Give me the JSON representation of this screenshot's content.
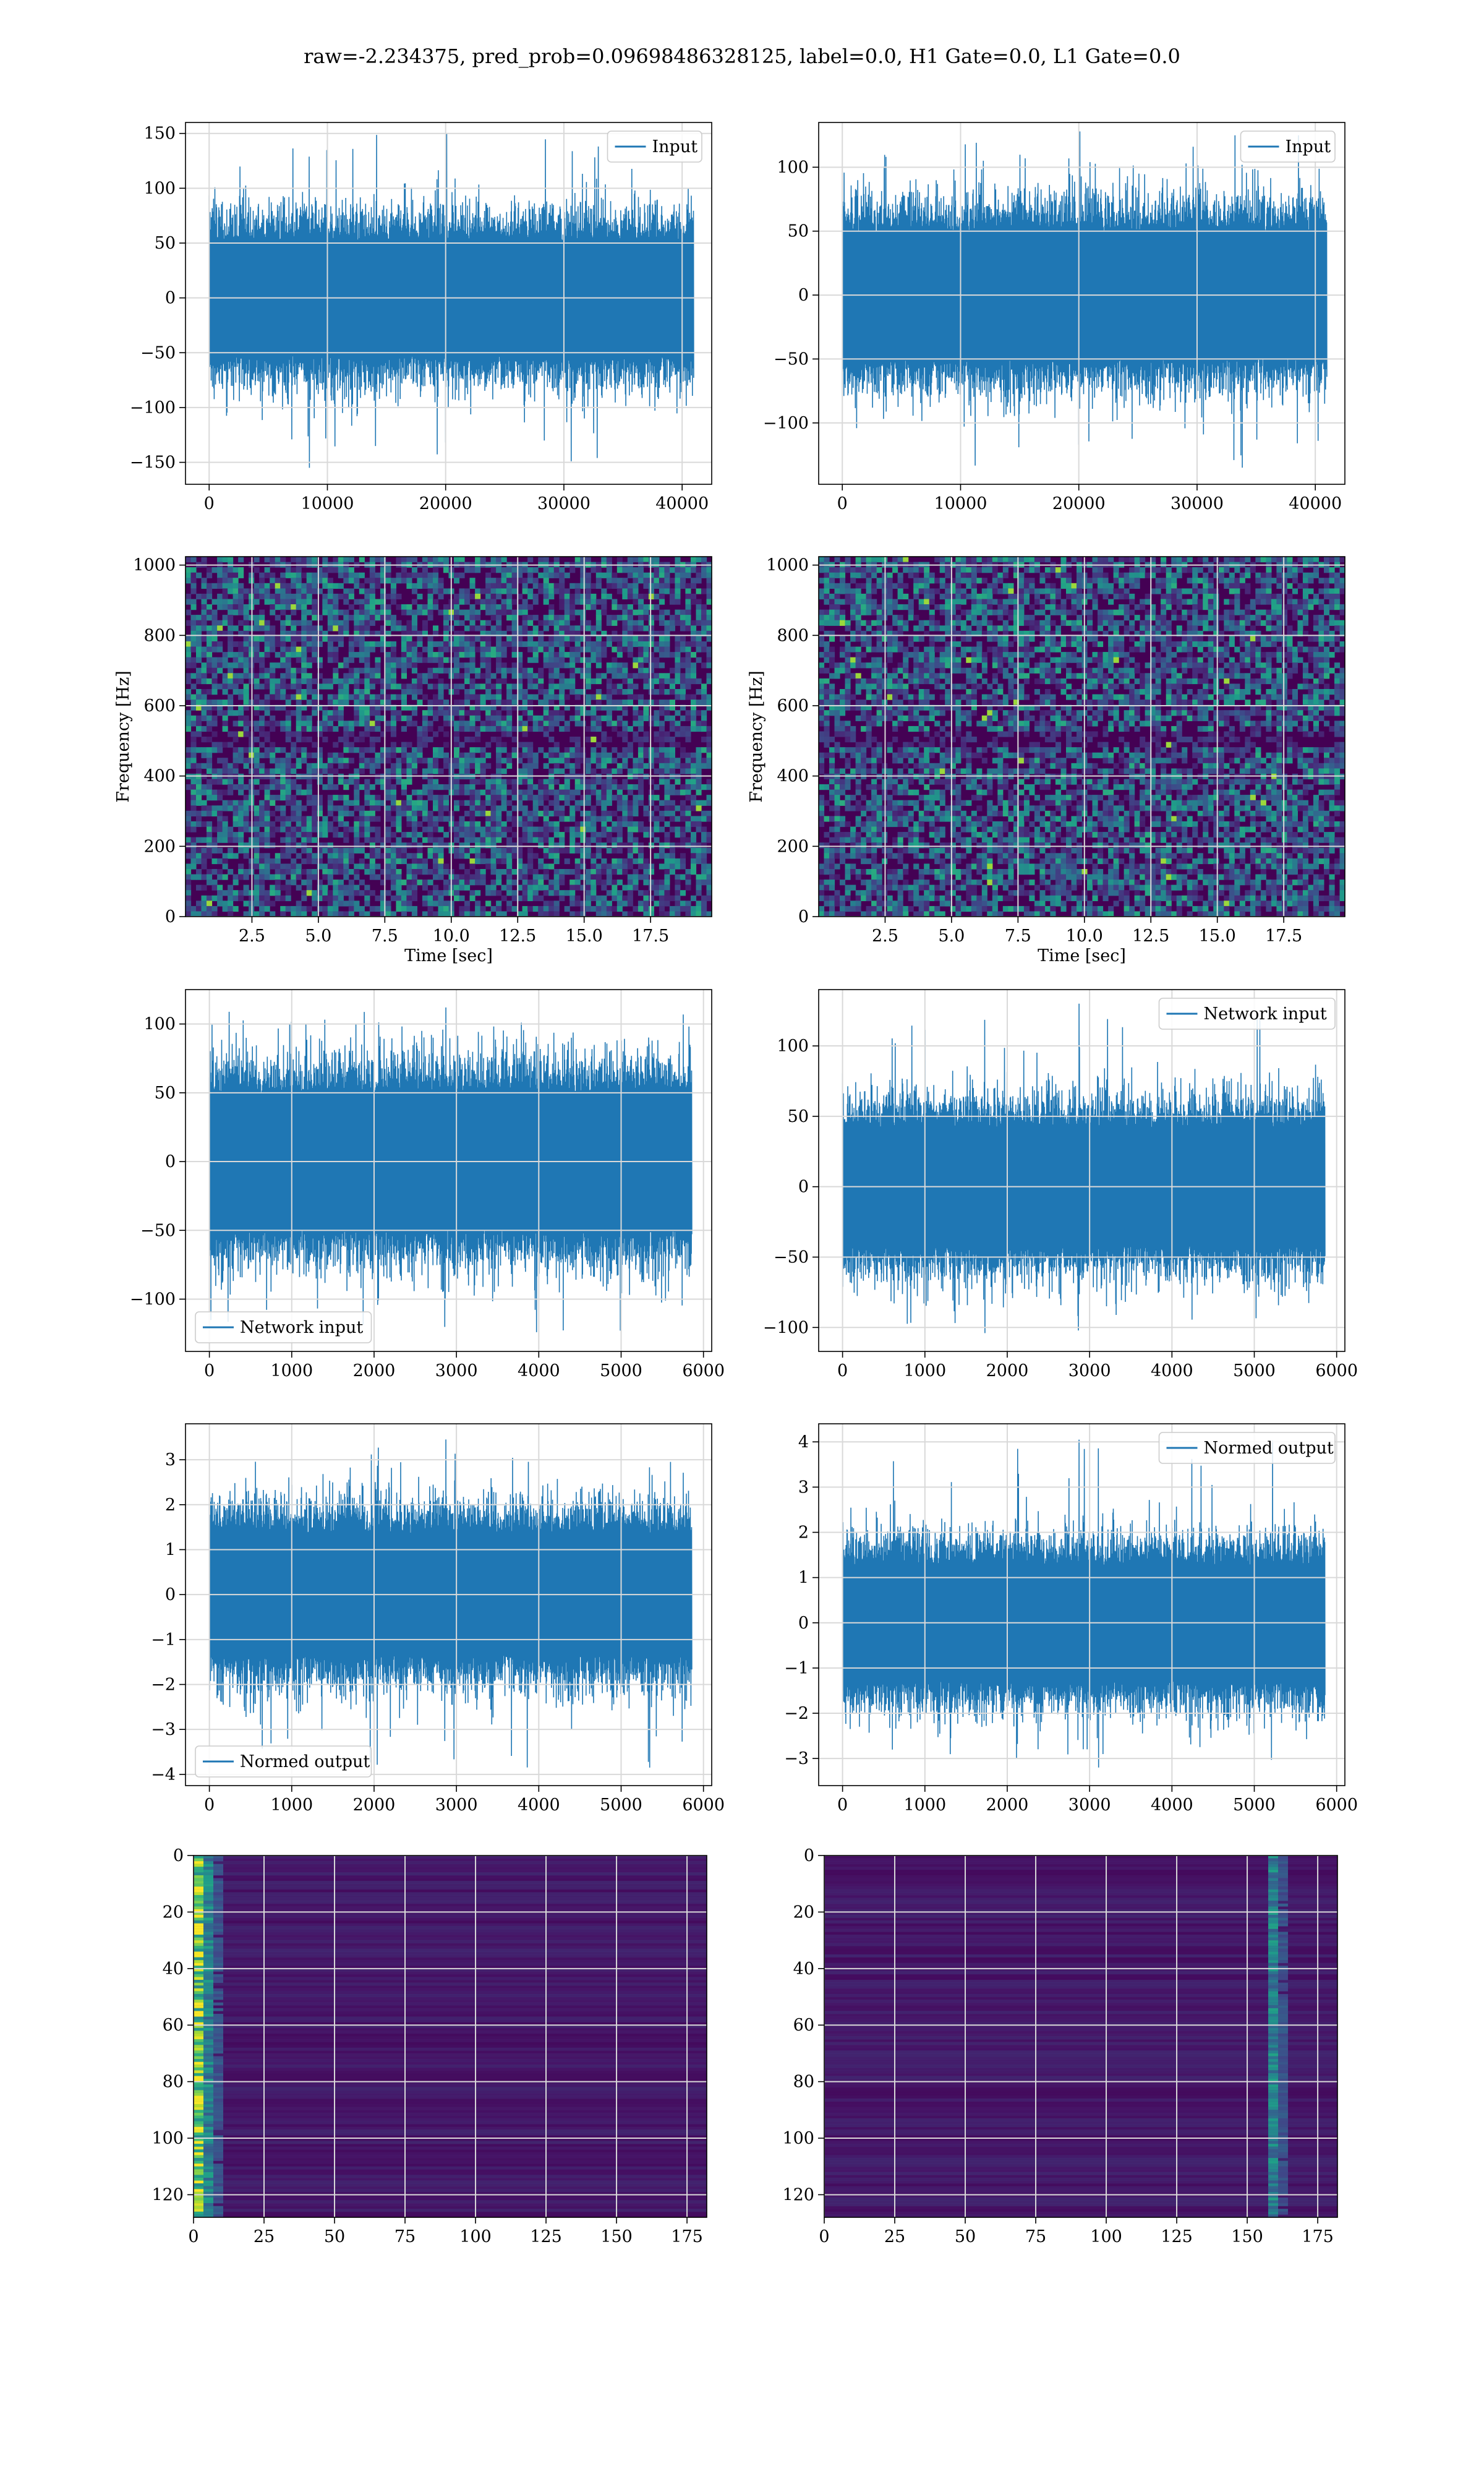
{
  "suptitle": "raw=-2.234375, pred_prob=0.09698486328125, label=0.0, H1 Gate=0.0, L1 Gate=0.0",
  "colors": {
    "line": "#1f77b4",
    "grid": "#d9d9d9",
    "viridis_low": "#440154",
    "viridis_mid": "#21918c",
    "viridis_high": "#fde725"
  },
  "chart_data": [
    {
      "id": "input-h1",
      "type": "line",
      "xlim": [
        -2000,
        42500
      ],
      "ylim": [
        -170,
        160
      ],
      "xticks": [
        "0",
        "10000",
        "20000",
        "30000",
        "40000"
      ],
      "xtick_values": [
        0,
        10000,
        20000,
        30000,
        40000
      ],
      "yticks": [
        "150",
        "100",
        "50",
        "0",
        "−50",
        "−100",
        "−150"
      ],
      "ytick_values": [
        150,
        100,
        50,
        0,
        -50,
        -100,
        -150
      ],
      "x_range": [
        0,
        40960
      ],
      "amplitude": 35,
      "peak_max": 150,
      "peak_min": -155,
      "series": [
        {
          "name": "Input"
        }
      ],
      "legend_loc": "upper right",
      "grid": true
    },
    {
      "id": "input-l1",
      "type": "line",
      "xlim": [
        -2000,
        42500
      ],
      "ylim": [
        -148,
        135
      ],
      "xticks": [
        "0",
        "10000",
        "20000",
        "30000",
        "40000"
      ],
      "xtick_values": [
        0,
        10000,
        20000,
        30000,
        40000
      ],
      "yticks": [
        "100",
        "50",
        "0",
        "−50",
        "−100"
      ],
      "ytick_values": [
        100,
        50,
        0,
        -50,
        -100
      ],
      "x_range": [
        0,
        40960
      ],
      "amplitude": 33,
      "peak_max": 128,
      "peak_min": -135,
      "series": [
        {
          "name": "Input"
        }
      ],
      "legend_loc": "upper right",
      "grid": true
    },
    {
      "id": "spectrogram-h1",
      "type": "heatmap",
      "xlim": [
        0,
        19.8
      ],
      "ylim": [
        0,
        1024
      ],
      "xticks": [
        "2.5",
        "5.0",
        "7.5",
        "10.0",
        "12.5",
        "15.0",
        "17.5"
      ],
      "xtick_values": [
        2.5,
        5,
        7.5,
        10,
        12.5,
        15,
        17.5
      ],
      "yticks": [
        "1000",
        "800",
        "600",
        "400",
        "200",
        "0"
      ],
      "ytick_values": [
        1000,
        800,
        600,
        400,
        200,
        0
      ],
      "xlabel": "Time [sec]",
      "ylabel": "Frequency [Hz]",
      "grid": true
    },
    {
      "id": "spectrogram-l1",
      "type": "heatmap",
      "xlim": [
        0,
        19.8
      ],
      "ylim": [
        0,
        1024
      ],
      "xticks": [
        "2.5",
        "5.0",
        "7.5",
        "10.0",
        "12.5",
        "15.0",
        "17.5"
      ],
      "xtick_values": [
        2.5,
        5,
        7.5,
        10,
        12.5,
        15,
        17.5
      ],
      "yticks": [
        "1000",
        "800",
        "600",
        "400",
        "200",
        "0"
      ],
      "ytick_values": [
        1000,
        800,
        600,
        400,
        200,
        0
      ],
      "xlabel": "Time [sec]",
      "ylabel": "Frequency [Hz]",
      "grid": true
    },
    {
      "id": "network-input-h1",
      "type": "line",
      "xlim": [
        -290,
        6100
      ],
      "ylim": [
        -138,
        125
      ],
      "xticks": [
        "0",
        "1000",
        "2000",
        "3000",
        "4000",
        "5000",
        "6000"
      ],
      "xtick_values": [
        0,
        1000,
        2000,
        3000,
        4000,
        5000,
        6000
      ],
      "yticks": [
        "100",
        "50",
        "0",
        "−50",
        "−100"
      ],
      "ytick_values": [
        100,
        50,
        0,
        -50,
        -100
      ],
      "x_range": [
        0,
        5856
      ],
      "amplitude": 33,
      "peak_max": 112,
      "peak_min": -124,
      "series": [
        {
          "name": "Network input"
        }
      ],
      "legend_loc": "lower left",
      "grid": true
    },
    {
      "id": "network-input-l1",
      "type": "line",
      "xlim": [
        -290,
        6100
      ],
      "ylim": [
        -117,
        140
      ],
      "xticks": [
        "0",
        "1000",
        "2000",
        "3000",
        "4000",
        "5000",
        "6000"
      ],
      "xtick_values": [
        0,
        1000,
        2000,
        3000,
        4000,
        5000,
        6000
      ],
      "yticks": [
        "100",
        "50",
        "0",
        "−50",
        "−100"
      ],
      "ytick_values": [
        100,
        50,
        0,
        -50,
        -100
      ],
      "x_range": [
        0,
        5856
      ],
      "amplitude": 28,
      "peak_max": 130,
      "peak_min": -104,
      "series": [
        {
          "name": "Network input"
        }
      ],
      "legend_loc": "upper right",
      "grid": true
    },
    {
      "id": "normed-output-h1",
      "type": "line",
      "xlim": [
        -290,
        6100
      ],
      "ylim": [
        -4.25,
        3.8
      ],
      "xticks": [
        "0",
        "1000",
        "2000",
        "3000",
        "4000",
        "5000",
        "6000"
      ],
      "xtick_values": [
        0,
        1000,
        2000,
        3000,
        4000,
        5000,
        6000
      ],
      "yticks": [
        "3",
        "2",
        "1",
        "0",
        "−1",
        "−2",
        "−3",
        "−4"
      ],
      "ytick_values": [
        3,
        2,
        1,
        0,
        -1,
        -2,
        -3,
        -4
      ],
      "x_range": [
        0,
        5856
      ],
      "amplitude": 0.9,
      "peak_max": 3.45,
      "peak_min": -3.85,
      "series": [
        {
          "name": "Normed output"
        }
      ],
      "legend_loc": "lower left",
      "grid": true
    },
    {
      "id": "normed-output-l1",
      "type": "line",
      "xlim": [
        -290,
        6100
      ],
      "ylim": [
        -3.6,
        4.4
      ],
      "xticks": [
        "0",
        "1000",
        "2000",
        "3000",
        "4000",
        "5000",
        "6000"
      ],
      "xtick_values": [
        0,
        1000,
        2000,
        3000,
        4000,
        5000,
        6000
      ],
      "yticks": [
        "4",
        "3",
        "2",
        "1",
        "0",
        "−1",
        "−2",
        "−3"
      ],
      "ytick_values": [
        4,
        3,
        2,
        1,
        0,
        -1,
        -2,
        -3
      ],
      "x_range": [
        0,
        5856
      ],
      "amplitude": 0.85,
      "peak_max": 4.05,
      "peak_min": -3.2,
      "series": [
        {
          "name": "Normed output"
        }
      ],
      "legend_loc": "upper right",
      "grid": true
    },
    {
      "id": "activation-h1",
      "type": "heatmap",
      "xlim": [
        0,
        182
      ],
      "ylim": [
        128,
        0
      ],
      "xticks": [
        "0",
        "25",
        "50",
        "75",
        "100",
        "125",
        "150",
        "175"
      ],
      "xtick_values": [
        0,
        25,
        50,
        75,
        100,
        125,
        150,
        175
      ],
      "yticks": [
        "0",
        "20",
        "40",
        "60",
        "80",
        "100",
        "120"
      ],
      "ytick_values": [
        0,
        20,
        40,
        60,
        80,
        100,
        120
      ],
      "hot_side": "left",
      "grid": true
    },
    {
      "id": "activation-l1",
      "type": "heatmap",
      "xlim": [
        0,
        182
      ],
      "ylim": [
        128,
        0
      ],
      "xticks": [
        "0",
        "25",
        "50",
        "75",
        "100",
        "125",
        "150",
        "175"
      ],
      "xtick_values": [
        0,
        25,
        50,
        75,
        100,
        125,
        150,
        175
      ],
      "yticks": [
        "0",
        "20",
        "40",
        "60",
        "80",
        "100",
        "120"
      ],
      "ytick_values": [
        0,
        20,
        40,
        60,
        80,
        100,
        120
      ],
      "hot_side": "right",
      "grid": true
    }
  ]
}
